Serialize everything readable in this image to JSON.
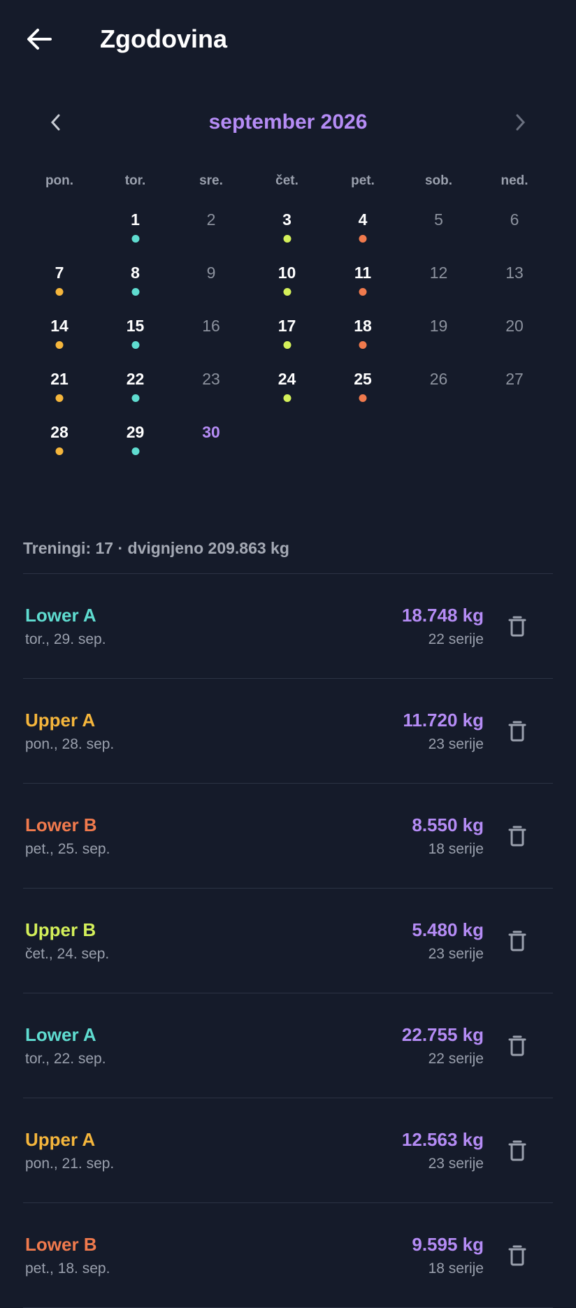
{
  "header": {
    "title": "Zgodovina"
  },
  "calendar": {
    "month": "september 2026",
    "weekdays": [
      "pon.",
      "tor.",
      "sre.",
      "čet.",
      "pet.",
      "sob.",
      "ned."
    ],
    "weeks": [
      [
        null,
        {
          "day": "1",
          "status": "workout",
          "dot": "#5fdcd0"
        },
        {
          "day": "2",
          "status": "rest"
        },
        {
          "day": "3",
          "status": "workout",
          "dot": "#d4f05a"
        },
        {
          "day": "4",
          "status": "workout",
          "dot": "#f07a4d"
        },
        {
          "day": "5",
          "status": "rest"
        },
        {
          "day": "6",
          "status": "rest"
        }
      ],
      [
        {
          "day": "7",
          "status": "workout",
          "dot": "#f5b63c"
        },
        {
          "day": "8",
          "status": "workout",
          "dot": "#5fdcd0"
        },
        {
          "day": "9",
          "status": "rest"
        },
        {
          "day": "10",
          "status": "workout",
          "dot": "#d4f05a"
        },
        {
          "day": "11",
          "status": "workout",
          "dot": "#f07a4d"
        },
        {
          "day": "12",
          "status": "rest"
        },
        {
          "day": "13",
          "status": "rest"
        }
      ],
      [
        {
          "day": "14",
          "status": "workout",
          "dot": "#f5b63c"
        },
        {
          "day": "15",
          "status": "workout",
          "dot": "#5fdcd0"
        },
        {
          "day": "16",
          "status": "rest"
        },
        {
          "day": "17",
          "status": "workout",
          "dot": "#d4f05a"
        },
        {
          "day": "18",
          "status": "workout",
          "dot": "#f07a4d"
        },
        {
          "day": "19",
          "status": "rest"
        },
        {
          "day": "20",
          "status": "rest"
        }
      ],
      [
        {
          "day": "21",
          "status": "workout",
          "dot": "#f5b63c"
        },
        {
          "day": "22",
          "status": "workout",
          "dot": "#5fdcd0"
        },
        {
          "day": "23",
          "status": "rest"
        },
        {
          "day": "24",
          "status": "workout",
          "dot": "#d4f05a"
        },
        {
          "day": "25",
          "status": "workout",
          "dot": "#f07a4d"
        },
        {
          "day": "26",
          "status": "rest"
        },
        {
          "day": "27",
          "status": "rest"
        }
      ],
      [
        {
          "day": "28",
          "status": "workout",
          "dot": "#f5b63c"
        },
        {
          "day": "29",
          "status": "workout",
          "dot": "#5fdcd0"
        },
        {
          "day": "30",
          "status": "today"
        }
      ]
    ]
  },
  "summary": "Treningi: 17 · dvignjeno 209.863 kg",
  "entries": [
    {
      "name": "Lower A",
      "color": "#5fdcd0",
      "date": "tor., 29. sep.",
      "weight": "18.748 kg",
      "sets": "22 serije"
    },
    {
      "name": "Upper A",
      "color": "#f5b63c",
      "date": "pon., 28. sep.",
      "weight": "11.720 kg",
      "sets": "23 serije"
    },
    {
      "name": "Lower B",
      "color": "#f07a4d",
      "date": "pet., 25. sep.",
      "weight": "8.550 kg",
      "sets": "18 serije"
    },
    {
      "name": "Upper B",
      "color": "#d4f05a",
      "date": "čet., 24. sep.",
      "weight": "5.480 kg",
      "sets": "23 serije"
    },
    {
      "name": "Lower A",
      "color": "#5fdcd0",
      "date": "tor., 22. sep.",
      "weight": "22.755 kg",
      "sets": "22 serije"
    },
    {
      "name": "Upper A",
      "color": "#f5b63c",
      "date": "pon., 21. sep.",
      "weight": "12.563 kg",
      "sets": "23 serije"
    },
    {
      "name": "Lower B",
      "color": "#f07a4d",
      "date": "pet., 18. sep.",
      "weight": "9.595 kg",
      "sets": "18 serije"
    }
  ]
}
